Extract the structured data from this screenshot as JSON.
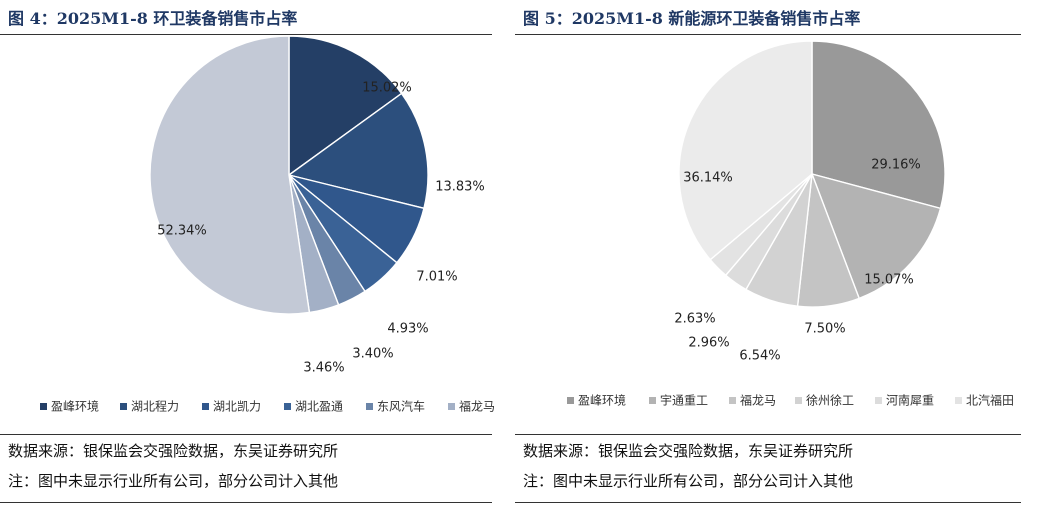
{
  "chart_data": [
    {
      "type": "pie",
      "title": "图 4：2025M1-8 环卫装备销售市占率",
      "categories": [
        "盈峰环境",
        "湖北程力",
        "湖北凯力",
        "湖北盈通",
        "东风汽车",
        "福龙马",
        "其他"
      ],
      "values": [
        15.02,
        13.83,
        7.01,
        4.93,
        3.4,
        3.46,
        52.34
      ],
      "value_labels": [
        "15.02%",
        "13.83%",
        "7.01%",
        "4.93%",
        "3.40%",
        "3.46%",
        "52.34%"
      ],
      "legend": [
        "盈峰环境",
        "湖北程力",
        "湖北凯力",
        "湖北盈通",
        "东风汽车",
        "福龙马"
      ],
      "colors": [
        "#243f66",
        "#2c4f7d",
        "#30578c",
        "#3a6296",
        "#6a84a8",
        "#a3b0c6",
        "#c3c9d6"
      ],
      "legend_position": "bottom",
      "source": "数据来源：银保监会交强险数据，东吴证券研究所",
      "remark": "注：图中未显示行业所有公司，部分公司计入其他"
    },
    {
      "type": "pie",
      "title": "图 5：2025M1-8 新能源环卫装备销售市占率",
      "categories": [
        "盈峰环境",
        "宇通重工",
        "福龙马",
        "徐州徐工",
        "河南犀重",
        "北汽福田",
        "其他"
      ],
      "values": [
        29.16,
        15.07,
        7.5,
        6.54,
        2.96,
        2.63,
        36.14
      ],
      "value_labels": [
        "29.16%",
        "15.07%",
        "7.50%",
        "6.54%",
        "2.96%",
        "2.63%",
        "36.14%"
      ],
      "legend": [
        "盈峰环境",
        "宇通重工",
        "福龙马",
        "徐州徐工",
        "河南犀重",
        "北汽福田"
      ],
      "colors": [
        "#999999",
        "#b3b3b3",
        "#c4c4c4",
        "#d2d2d2",
        "#dcdcdc",
        "#e3e3e3",
        "#ebebeb"
      ],
      "legend_position": "bottom",
      "source": "数据来源：银保监会交强险数据，东吴证券研究所",
      "remark": "注：图中未显示行业所有公司，部分公司计入其他"
    }
  ]
}
